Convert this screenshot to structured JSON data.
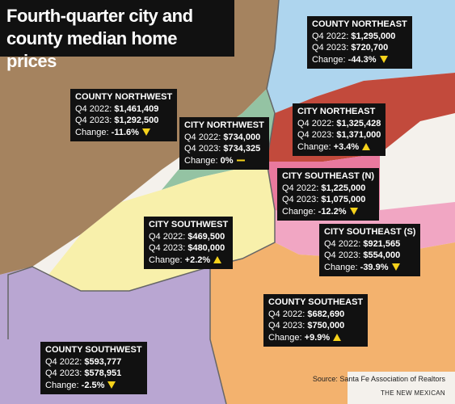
{
  "title": {
    "lines": [
      "Fourth-quarter city and",
      "county median home prices"
    ]
  },
  "regions": [
    {
      "name": "COUNTY NORTHEAST",
      "rows": [
        {
          "label": "Q4 2022:",
          "value": "$1,295,000"
        },
        {
          "label": "Q4 2023:",
          "value": "$720,700"
        },
        {
          "label": "Change:",
          "value": "-44.3%"
        }
      ]
    },
    {
      "name": "COUNTY NORTHWEST",
      "rows": [
        {
          "label": "Q4 2022:",
          "value": "$1,461,409"
        },
        {
          "label": "Q4 2023:",
          "value": "$1,292,500"
        },
        {
          "label": "Change:",
          "value": "-11.6%"
        }
      ]
    },
    {
      "name": "CITY NORTHWEST",
      "rows": [
        {
          "label": "Q4 2022:",
          "value": "$734,000"
        },
        {
          "label": "Q4 2023:",
          "value": "$734,325"
        },
        {
          "label": "Change:",
          "value": "0%"
        }
      ]
    },
    {
      "name": "CITY NORTHEAST",
      "rows": [
        {
          "label": "Q4 2022:",
          "value": "$1,325,428"
        },
        {
          "label": "Q4 2023:",
          "value": "$1,371,000"
        },
        {
          "label": "Change:",
          "value": "+3.4%"
        }
      ]
    },
    {
      "name": "CITY SOUTHEAST (N)",
      "rows": [
        {
          "label": "Q4 2022:",
          "value": "$1,225,000"
        },
        {
          "label": "Q4 2023:",
          "value": "$1,075,000"
        },
        {
          "label": "Change:",
          "value": "-12.2%"
        }
      ]
    },
    {
      "name": "CITY SOUTHWEST",
      "rows": [
        {
          "label": "Q4 2022:",
          "value": "$469,500"
        },
        {
          "label": "Q4 2023:",
          "value": "$480,000"
        },
        {
          "label": "Change:",
          "value": "+2.2%"
        }
      ]
    },
    {
      "name": "CITY SOUTHEAST (S)",
      "rows": [
        {
          "label": "Q4 2022:",
          "value": "$921,565"
        },
        {
          "label": "Q4 2023:",
          "value": "$554,000"
        },
        {
          "label": "Change:",
          "value": "-39.9%"
        }
      ]
    },
    {
      "name": "COUNTY SOUTHEAST",
      "rows": [
        {
          "label": "Q4 2022:",
          "value": "$682,690"
        },
        {
          "label": "Q4 2023:",
          "value": "$750,000"
        },
        {
          "label": "Change:",
          "value": "+9.9%"
        }
      ]
    },
    {
      "name": "COUNTY SOUTHWEST",
      "rows": [
        {
          "label": "Q4 2022:",
          "value": "$593,777"
        },
        {
          "label": "Q4 2023:",
          "value": "$578,951"
        },
        {
          "label": "Change:",
          "value": "-2.5%"
        }
      ]
    }
  ],
  "source": "Source: Santa Fe Association of Realtors",
  "credit": "THE NEW MEXICAN"
}
